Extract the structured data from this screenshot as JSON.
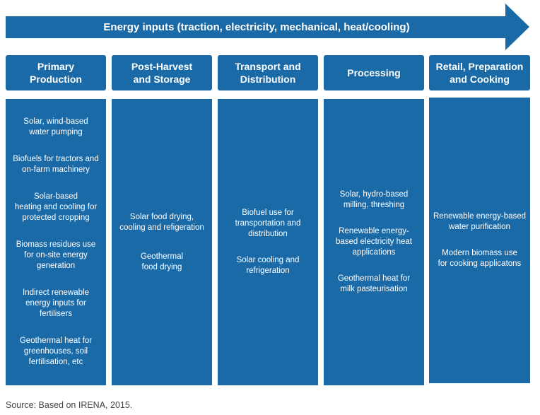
{
  "arrow": {
    "label": "Energy inputs (traction, electricity, mechanical, heat/cooling)",
    "color": "#1b6aa8"
  },
  "stages": [
    {
      "title": "Primary\nProduction",
      "items": [
        "Solar, wind-based\nwater pumping",
        "Biofuels for tractors and\non-farm machinery",
        "Solar-based\nheating and cooling for\nprotected cropping",
        "Biomass residues use\nfor on-site energy\ngeneration",
        "Indirect renewable\nenergy inputs for\nfertilisers",
        "Geothermal heat for\ngreenhouses, soil\nfertilisation, etc"
      ]
    },
    {
      "title": "Post-Harvest\nand Storage",
      "items": [
        "Solar food drying,\ncooling and refigeration",
        "Geothermal\nfood drying"
      ]
    },
    {
      "title": "Transport and\nDistribution",
      "items": [
        "Biofuel use for\ntransportation and\ndistribution",
        "Solar cooling and\nrefrigeration"
      ]
    },
    {
      "title": "Processing",
      "items": [
        "Solar, hydro-based\nmilling, threshing",
        "Renewable energy-\nbased electricity heat\napplications",
        "Geothermal heat for\nmilk pasteurisation"
      ]
    },
    {
      "title": "Retail, Preparation\nand Cooking",
      "items": [
        "Renewable energy-based\nwater purification",
        "Modern biomass use\nfor cooking applicatons"
      ]
    }
  ],
  "source": "Source: Based on IRENA, 2015."
}
